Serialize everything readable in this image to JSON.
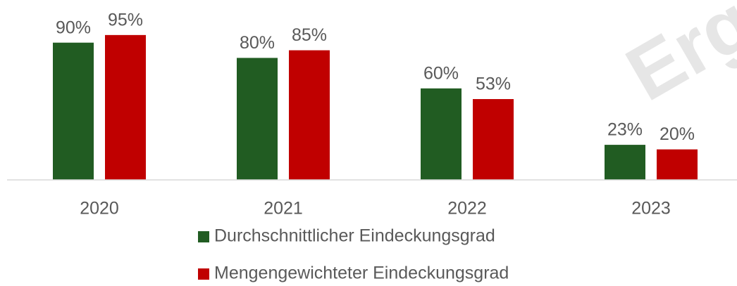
{
  "chart_data": {
    "type": "bar",
    "watermark": "Erge",
    "categories": [
      "2020",
      "2021",
      "2022",
      "2023"
    ],
    "series": [
      {
        "name": "Durchschnittlicher Eindeckungsgrad",
        "color": "#215c22",
        "values": [
          90,
          80,
          60,
          23
        ],
        "value_labels": [
          "90%",
          "80%",
          "60%",
          "23%"
        ]
      },
      {
        "name": "Mengengewichteter Eindeckungsgrad",
        "color": "#c00000",
        "values": [
          95,
          85,
          53,
          20
        ],
        "value_labels": [
          "95%",
          "85%",
          "53%",
          "20%"
        ]
      }
    ],
    "ylim": [
      0,
      100
    ]
  }
}
